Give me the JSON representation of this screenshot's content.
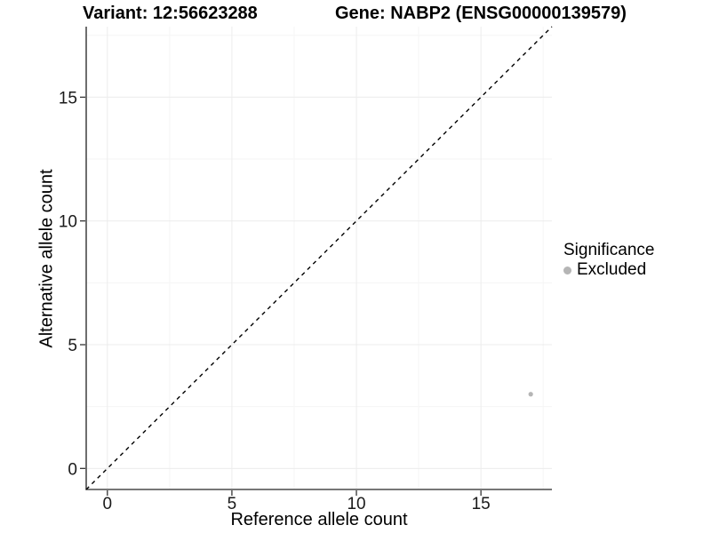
{
  "titles": {
    "variant": "Variant: 12:56623288",
    "gene": "Gene: NABP2 (ENSG00000139579)"
  },
  "chart_data": {
    "type": "scatter",
    "xlabel": "Reference allele count",
    "ylabel": "Alternative allele count",
    "xlim": [
      -0.85,
      17.85
    ],
    "ylim": [
      -0.85,
      17.85
    ],
    "x_ticks": [
      0,
      5,
      10,
      15
    ],
    "y_ticks": [
      0,
      5,
      10,
      15
    ],
    "minor_ticks": [
      2.5,
      7.5,
      12.5,
      17.5
    ],
    "grid": "major and minor gridlines, white panel background",
    "points": [
      {
        "x": 17,
        "y": 3,
        "series": "Excluded"
      }
    ],
    "reference_line": {
      "type": "identity",
      "slope": 1,
      "intercept": 0,
      "style": "dashed",
      "color": "#000000"
    },
    "legend": {
      "title": "Significance",
      "position": "right",
      "items": [
        {
          "label": "Excluded",
          "color": "#b5b5b5",
          "marker": "circle"
        }
      ]
    },
    "colors": {
      "point": "#b5b5b5",
      "axis_line": "#4a4a4a",
      "tick_mark": "#333333",
      "grid_major": "#ececec",
      "grid_minor": "#f5f5f5",
      "background": "#ffffff"
    }
  }
}
